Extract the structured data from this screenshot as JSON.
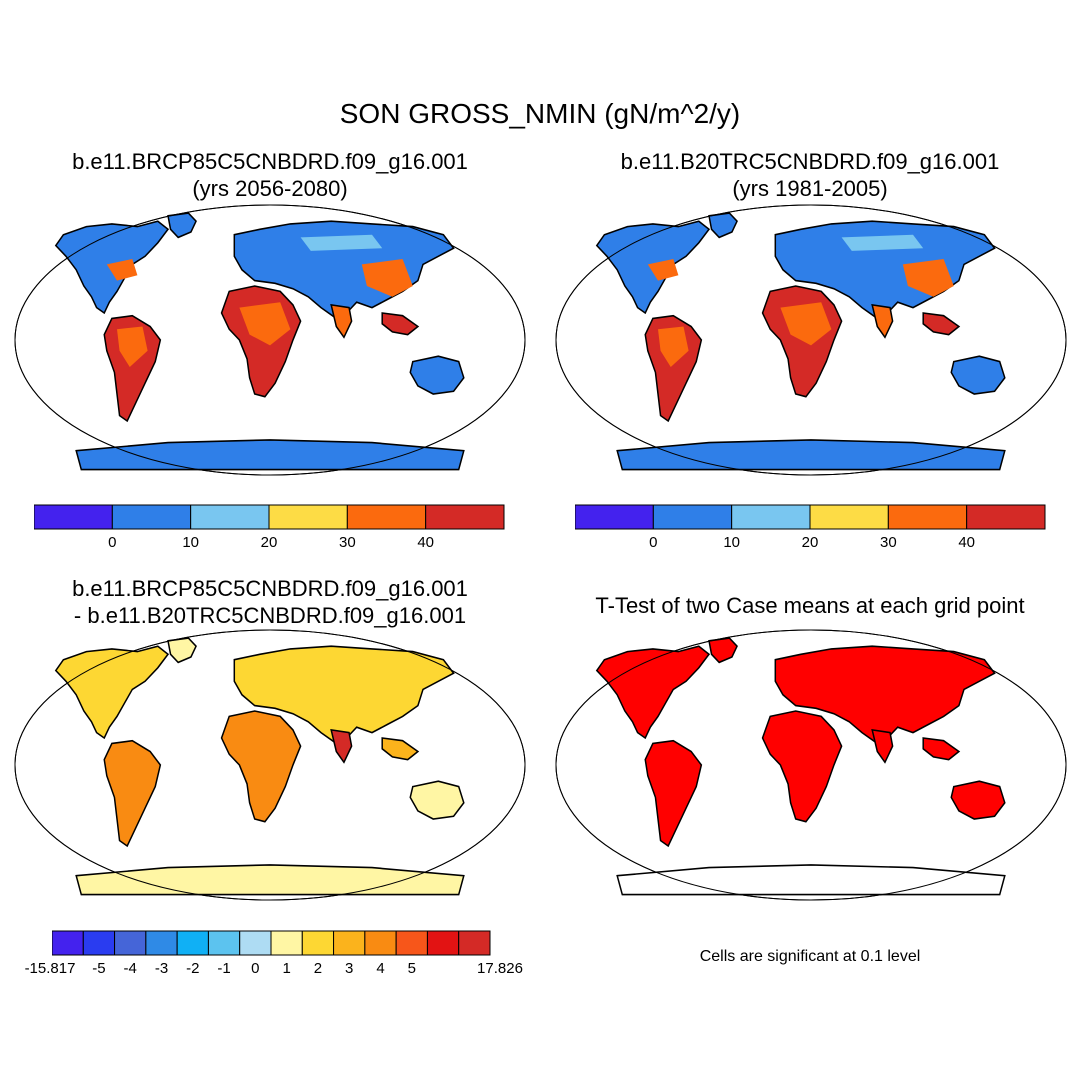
{
  "title": "SON GROSS_NMIN (gN/m^2/y)",
  "panels": [
    {
      "id": "p1",
      "title_line1": "b.e11.BRCP85C5CNBDRD.f09_g16.001",
      "title_line2": "(yrs 2056-2080)"
    },
    {
      "id": "p2",
      "title_line1": "b.e11.B20TRC5CNBDRD.f09_g16.001",
      "title_line2": "(yrs 1981-2005)"
    },
    {
      "id": "p3",
      "title_line1": "b.e11.BRCP85C5CNBDRD.f09_g16.001",
      "title_line2": "- b.e11.B20TRC5CNBDRD.f09_g16.001"
    },
    {
      "id": "p4",
      "title_line1": "T-Test of two Case means at each grid point",
      "title_line2": ""
    }
  ],
  "colorbar_abs": {
    "colors": [
      "#4422ee",
      "#2f7fe8",
      "#79c6f0",
      "#fddc45",
      "#fb6a0e",
      "#d42a26"
    ],
    "labels": [
      "0",
      "10",
      "20",
      "30",
      "40"
    ]
  },
  "colorbar_diff": {
    "colors": [
      "#4422ee",
      "#2a3cf0",
      "#4565d8",
      "#2f8ae6",
      "#10b0f5",
      "#5cc3ef",
      "#aedcf3",
      "#fff6a4",
      "#fdd733",
      "#fbb31c",
      "#f98b12",
      "#f7561a",
      "#e21313",
      "#d42a26"
    ],
    "labels": [
      "-15.817",
      "-5",
      "-4",
      "-3",
      "-2",
      "-1",
      "0",
      "1",
      "2",
      "3",
      "4",
      "5",
      "17.826"
    ]
  },
  "significance_note": "Cells are significant at 0.1 level",
  "map_colors": {
    "ocean": "#ffffff",
    "coast": "#000000",
    "ttest_fill": "#ff0000"
  }
}
